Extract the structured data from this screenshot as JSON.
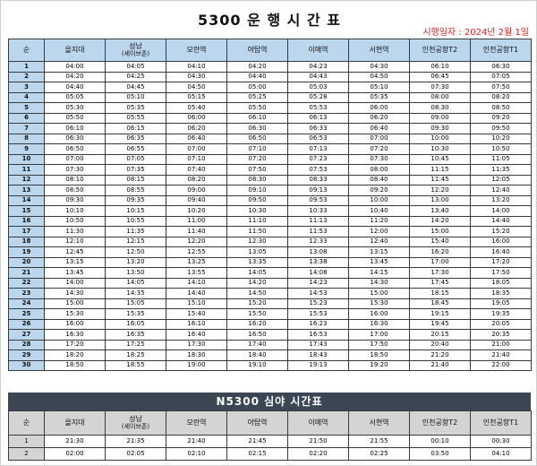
{
  "title": "5300 운 행 시 간 표",
  "effective": "시행일자 : 2024년 2월 1일",
  "headers": [
    "순",
    "을지대",
    "성남",
    "(세이브존)",
    "모란역",
    "야탑역",
    "이매역",
    "서현역",
    "인천공항T2",
    "인천공항T1"
  ],
  "rows": [
    [
      "1",
      "04:00",
      "04:05",
      "04:10",
      "04:20",
      "04:23",
      "04:30",
      "06:10",
      "06:30"
    ],
    [
      "2",
      "04:20",
      "04:25",
      "04:30",
      "04:40",
      "04:43",
      "04:50",
      "06:45",
      "07:05"
    ],
    [
      "3",
      "04:40",
      "04:45",
      "04:50",
      "05:00",
      "05:03",
      "05:10",
      "07:30",
      "07:50"
    ],
    [
      "4",
      "05:05",
      "05:10",
      "05:15",
      "05:25",
      "05:28",
      "05:35",
      "08:00",
      "08:20"
    ],
    [
      "5",
      "05:30",
      "05:35",
      "05:40",
      "05:50",
      "05:53",
      "06:00",
      "08:30",
      "08:50"
    ],
    [
      "6",
      "05:50",
      "05:55",
      "06:00",
      "06:10",
      "06:13",
      "06:20",
      "09:00",
      "09:20"
    ],
    [
      "7",
      "06:10",
      "06:15",
      "06:20",
      "06:30",
      "06:33",
      "06:40",
      "09:30",
      "09:50"
    ],
    [
      "8",
      "06:30",
      "06:35",
      "06:40",
      "06:50",
      "06:53",
      "07:00",
      "10:00",
      "10:20"
    ],
    [
      "9",
      "06:50",
      "06:55",
      "07:00",
      "07:10",
      "07:13",
      "07:20",
      "10:30",
      "10:50"
    ],
    [
      "10",
      "07:00",
      "07:05",
      "07:10",
      "07:20",
      "07:23",
      "07:30",
      "10:45",
      "11:05"
    ],
    [
      "11",
      "07:30",
      "07:35",
      "07:40",
      "07:50",
      "07:53",
      "08:00",
      "11:15",
      "11:35"
    ],
    [
      "12",
      "08:10",
      "08:15",
      "08:20",
      "08:30",
      "08:33",
      "08:40",
      "11:45",
      "12:05"
    ],
    [
      "13",
      "08:50",
      "08:55",
      "09:00",
      "09:10",
      "09:13",
      "09:20",
      "12:20",
      "12:40"
    ],
    [
      "14",
      "09:30",
      "09:35",
      "09:40",
      "09:50",
      "09:53",
      "10:00",
      "13:00",
      "13:20"
    ],
    [
      "15",
      "10:10",
      "10:15",
      "10:20",
      "10:30",
      "10:33",
      "10:40",
      "13:40",
      "14:00"
    ],
    [
      "16",
      "10:50",
      "10:55",
      "11:00",
      "11:10",
      "11:13",
      "11:20",
      "14:20",
      "14:40"
    ],
    [
      "17",
      "11:30",
      "11:35",
      "11:40",
      "11:50",
      "11:53",
      "12:00",
      "15:00",
      "15:20"
    ],
    [
      "18",
      "12:10",
      "12:15",
      "12:20",
      "12:30",
      "12:33",
      "12:40",
      "15:40",
      "16:00"
    ],
    [
      "19",
      "12:45",
      "12:50",
      "12:55",
      "13:05",
      "13:08",
      "13:15",
      "16:20",
      "16:40"
    ],
    [
      "20",
      "13:15",
      "13:20",
      "13:25",
      "13:35",
      "13:38",
      "13:45",
      "17:00",
      "17:20"
    ],
    [
      "21",
      "13:45",
      "13:50",
      "13:55",
      "14:05",
      "14:08",
      "14:15",
      "17:30",
      "17:50"
    ],
    [
      "22",
      "14:00",
      "14:05",
      "14:10",
      "14:20",
      "14:23",
      "14:30",
      "17:45",
      "18:05"
    ],
    [
      "23",
      "14:30",
      "14:35",
      "14:40",
      "14:50",
      "14:53",
      "15:00",
      "18:15",
      "18:35"
    ],
    [
      "24",
      "15:00",
      "15:05",
      "15:10",
      "15:20",
      "15:23",
      "15:30",
      "18:45",
      "19:05"
    ],
    [
      "25",
      "15:30",
      "15:35",
      "15:40",
      "15:50",
      "15:53",
      "16:00",
      "19:15",
      "19:35"
    ],
    [
      "26",
      "16:00",
      "16:05",
      "16:10",
      "16:20",
      "16:23",
      "16:30",
      "19:45",
      "20:05"
    ],
    [
      "27",
      "16:30",
      "16:35",
      "16:40",
      "16:50",
      "16:53",
      "17:00",
      "20:15",
      "20:35"
    ],
    [
      "28",
      "17:20",
      "17:25",
      "17:30",
      "17:40",
      "17:43",
      "17:50",
      "20:40",
      "21:00"
    ],
    [
      "29",
      "18:20",
      "18:25",
      "18:30",
      "18:40",
      "18:43",
      "18:50",
      "21:20",
      "21:40"
    ],
    [
      "30",
      "18:50",
      "18:55",
      "19:00",
      "19:10",
      "19:13",
      "19:20",
      "21:40",
      "22:00"
    ]
  ],
  "night_title": "N5300 심야 시간표",
  "night_rows": [
    [
      "1",
      "21:30",
      "21:35",
      "21:40",
      "21:45",
      "21:50",
      "21:55",
      "00:10",
      "00:30"
    ],
    [
      "2",
      "02:00",
      "02:05",
      "02:10",
      "02:15",
      "02:20",
      "02:25",
      "03:50",
      "04:10"
    ]
  ]
}
